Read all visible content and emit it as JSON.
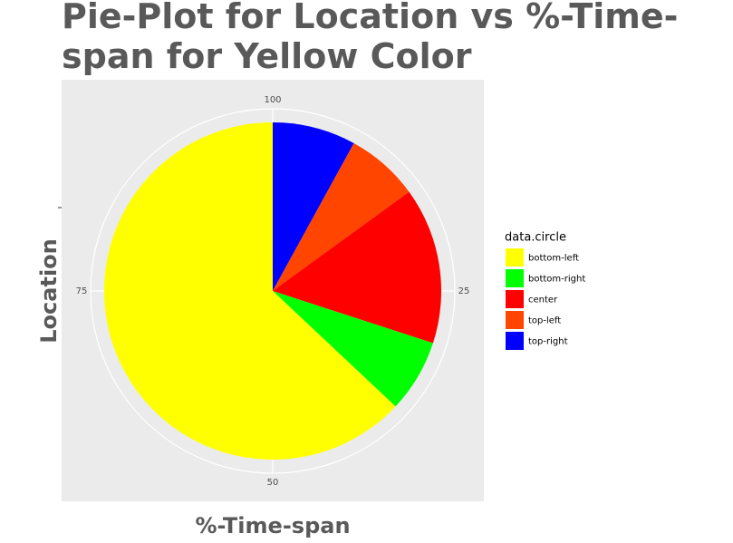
{
  "chart_data": {
    "type": "pie",
    "title": "Pie-Plot for Location vs %-Time-span for Yellow Color",
    "xlabel": "%-Time-span",
    "ylabel": "Location",
    "legend_title": "data.circle",
    "categories": [
      "bottom-left",
      "bottom-right",
      "center",
      "top-left",
      "top-right"
    ],
    "values": [
      63,
      7,
      15,
      7,
      8
    ],
    "colors": [
      "#ffff00",
      "#00ff00",
      "#ff0000",
      "#ff4500",
      "#0000ff"
    ],
    "xlim": [
      0,
      100
    ],
    "xticks": [
      25,
      50,
      75,
      100
    ],
    "grid": true,
    "legend": "right"
  }
}
